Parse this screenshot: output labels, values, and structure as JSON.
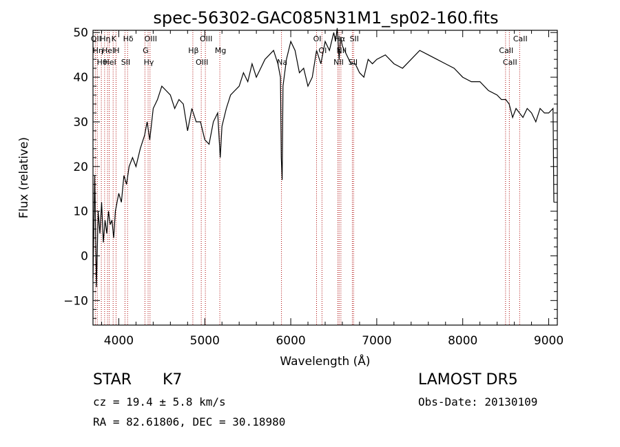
{
  "chart_data": {
    "type": "line",
    "title": "spec-56302-GAC085N31M1_sp02-160.fits",
    "xlabel": "Wavelength (Å)",
    "ylabel": "Flux (relative)",
    "xlim": [
      3700,
      9100
    ],
    "ylim": [
      -15.5,
      50.5
    ],
    "xticks": [
      4000,
      5000,
      6000,
      7000,
      8000,
      9000
    ],
    "yticks": [
      -10,
      0,
      10,
      20,
      30,
      40,
      50
    ],
    "grid": false,
    "series": [
      {
        "x": [
          3700,
          3720,
          3740,
          3760,
          3780,
          3800,
          3820,
          3840,
          3860,
          3880,
          3900,
          3920,
          3940,
          3960,
          3980,
          4000,
          4030,
          4060,
          4090,
          4120,
          4160,
          4200,
          4250,
          4300,
          4330,
          4360,
          4400,
          4450,
          4500,
          4550,
          4600,
          4650,
          4700,
          4750,
          4800,
          4850,
          4900,
          4950,
          5000,
          5050,
          5100,
          5150,
          5180,
          5200,
          5250,
          5300,
          5350,
          5400,
          5450,
          5500,
          5550,
          5600,
          5650,
          5700,
          5750,
          5800,
          5850,
          5880,
          5890,
          5900,
          5910,
          5950,
          6000,
          6050,
          6100,
          6150,
          6200,
          6250,
          6300,
          6350,
          6400,
          6450,
          6500,
          6520,
          6540,
          6563,
          6580,
          6600,
          6650,
          6700,
          6750,
          6800,
          6850,
          6900,
          6950,
          7000,
          7100,
          7200,
          7300,
          7400,
          7500,
          7600,
          7700,
          7800,
          7900,
          8000,
          8100,
          8200,
          8300,
          8400,
          8450,
          8500,
          8540,
          8580,
          8620,
          8660,
          8700,
          8750,
          8800,
          8850,
          8900,
          8950,
          9000,
          9050,
          9060
        ],
        "y": [
          -5,
          18,
          -7,
          10,
          5,
          12,
          3,
          8,
          5,
          10,
          7,
          8,
          4,
          10,
          12,
          14,
          12,
          18,
          16,
          20,
          22,
          20,
          24,
          27,
          30,
          26,
          33,
          35,
          38,
          37,
          36,
          33,
          35,
          34,
          28,
          33,
          30,
          30,
          26,
          25,
          30,
          32,
          22,
          29,
          33,
          36,
          37,
          38,
          41,
          39,
          43,
          40,
          42,
          44,
          45,
          46,
          43,
          40,
          22,
          17,
          38,
          44,
          48,
          46,
          41,
          42,
          38,
          40,
          46,
          43,
          48,
          46,
          50,
          48,
          51,
          44,
          49,
          47,
          45,
          43,
          43,
          41,
          40,
          44,
          43,
          44,
          45,
          43,
          42,
          44,
          46,
          45,
          44,
          43,
          42,
          40,
          39,
          39,
          37,
          36,
          35,
          35,
          34,
          31,
          33,
          32,
          31,
          33,
          32,
          30,
          33,
          32,
          32,
          33,
          12
        ],
        "color": "#000000"
      }
    ],
    "line_markers": [
      {
        "wavelength": 3727,
        "labels": [
          "OII"
        ],
        "color": "#aa0000"
      },
      {
        "wavelength": 3750,
        "labels": [
          "Hη"
        ],
        "color": "#aa0000"
      },
      {
        "wavelength": 3797,
        "labels": [
          "Hθ"
        ],
        "color": "#aa0000"
      },
      {
        "wavelength": 3835,
        "labels": [
          "Hη"
        ],
        "color": "#aa0000"
      },
      {
        "wavelength": 3869,
        "labels": [
          "HeI"
        ],
        "color": "#aa0000"
      },
      {
        "wavelength": 3889,
        "labels": [
          "HeI"
        ],
        "color": "#aa0000"
      },
      {
        "wavelength": 3934,
        "labels": [
          "K"
        ],
        "color": "#aa0000"
      },
      {
        "wavelength": 3968,
        "labels": [
          "H"
        ],
        "color": "#aa0000"
      },
      {
        "wavelength": 4072,
        "labels": [
          "SII"
        ],
        "color": "#aa0000"
      },
      {
        "wavelength": 4102,
        "labels": [
          "Hδ"
        ],
        "color": "#aa0000"
      },
      {
        "wavelength": 4304,
        "labels": [
          "G"
        ],
        "color": "#aa0000"
      },
      {
        "wavelength": 4341,
        "labels": [
          "Hγ"
        ],
        "color": "#aa0000"
      },
      {
        "wavelength": 4363,
        "labels": [
          "OIII"
        ],
        "color": "#aa0000"
      },
      {
        "wavelength": 4861,
        "labels": [
          "Hβ"
        ],
        "color": "#aa0000"
      },
      {
        "wavelength": 4959,
        "labels": [
          "OIII"
        ],
        "color": "#aa0000"
      },
      {
        "wavelength": 5007,
        "labels": [
          "OIII"
        ],
        "color": "#aa0000"
      },
      {
        "wavelength": 5175,
        "labels": [
          "Mg"
        ],
        "color": "#aa0000"
      },
      {
        "wavelength": 5892,
        "labels": [
          "Na"
        ],
        "color": "#aa0000"
      },
      {
        "wavelength": 6300,
        "labels": [
          "OI"
        ],
        "color": "#aa0000"
      },
      {
        "wavelength": 6363,
        "labels": [
          "OI"
        ],
        "color": "#aa0000"
      },
      {
        "wavelength": 6548,
        "labels": [
          "NII"
        ],
        "color": "#aa0000"
      },
      {
        "wavelength": 6563,
        "labels": [
          "Hα"
        ],
        "color": "#aa0000"
      },
      {
        "wavelength": 6583,
        "labels": [
          "NII"
        ],
        "color": "#aa0000"
      },
      {
        "wavelength": 6716,
        "labels": [
          "SII"
        ],
        "color": "#aa0000"
      },
      {
        "wavelength": 6731,
        "labels": [
          "SII"
        ],
        "color": "#aa0000"
      },
      {
        "wavelength": 8498,
        "labels": [
          "CaII"
        ],
        "color": "#aa0000"
      },
      {
        "wavelength": 8542,
        "labels": [
          "CaII"
        ],
        "color": "#aa0000"
      },
      {
        "wavelength": 8662,
        "labels": [
          "CaII"
        ],
        "color": "#aa0000"
      }
    ]
  },
  "info": {
    "object_class": "STAR",
    "subclass": "K7",
    "survey": "LAMOST DR5",
    "redshift": "cz = 19.4 ± 5.8 km/s",
    "obs_date": "Obs-Date: 20130109",
    "coords": "RA =  82.61806, DEC =  30.18980"
  }
}
